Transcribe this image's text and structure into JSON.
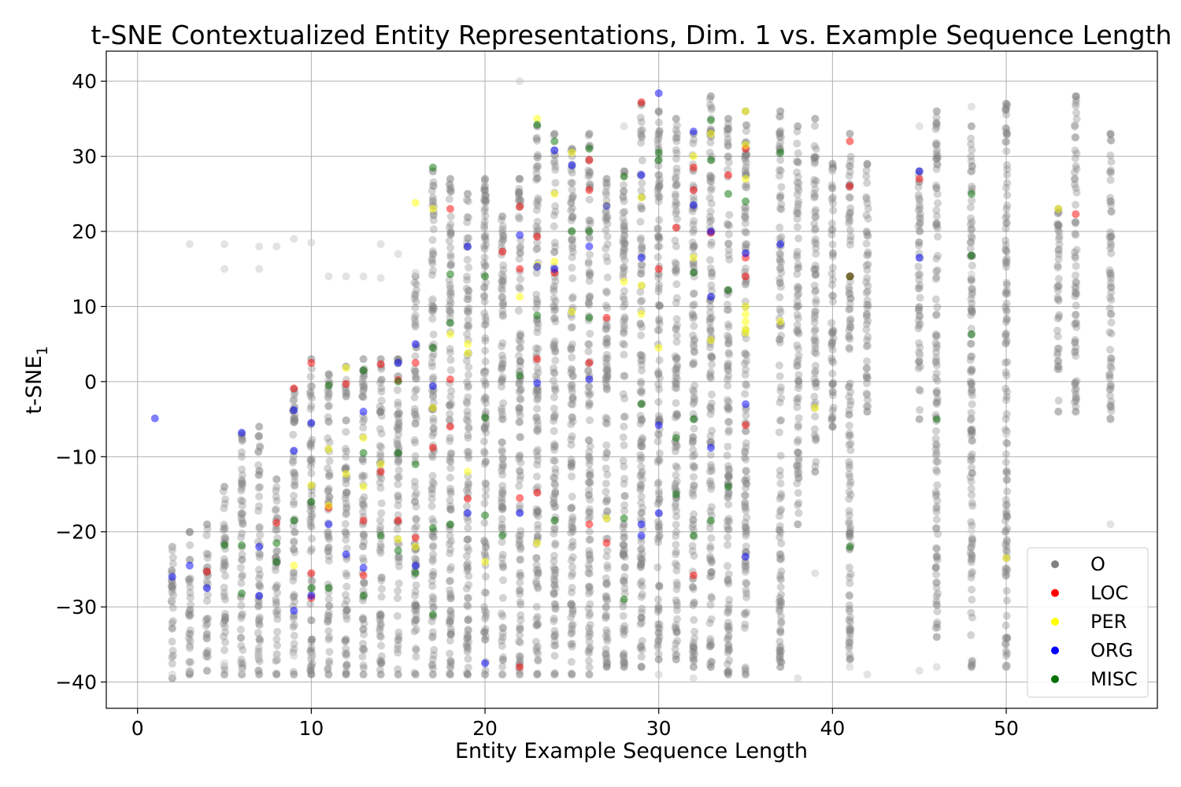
{
  "chart_data": {
    "type": "scatter",
    "title": "t-SNE Contextualized Entity Representations, Dim. 1 vs. Example Sequence Length",
    "xlabel": "Entity Example Sequence Length",
    "ylabel_main": "t-SNE",
    "ylabel_sub": "1",
    "xlim": [
      -1.8,
      58.7
    ],
    "ylim": [
      -43.5,
      44
    ],
    "xticks": [
      0,
      10,
      20,
      30,
      40,
      50
    ],
    "yticks": [
      40,
      30,
      20,
      10,
      0,
      -10,
      -20,
      -30,
      -40
    ],
    "ytick_labels": [
      "40",
      "30",
      "20",
      "10",
      "0",
      "−10",
      "−20",
      "−30",
      "−40"
    ],
    "grid": true,
    "legend_position": "lower-right",
    "colors": {
      "O": "#808080",
      "O_faint": "#c8c8c8",
      "LOC": "#ff0000",
      "PER": "#ffff00",
      "ORG": "#0000ff",
      "MISC": "#007000"
    },
    "legend": [
      {
        "label": "O",
        "color": "#808080"
      },
      {
        "label": "LOC",
        "color": "#ff0000"
      },
      {
        "label": "PER",
        "color": "#ffff00"
      },
      {
        "label": "ORG",
        "color": "#0000ff"
      },
      {
        "label": "MISC",
        "color": "#007000"
      }
    ],
    "o_column_ranges": [
      {
        "x": 2,
        "min": -39.5,
        "max": -22
      },
      {
        "x": 3,
        "min": -39,
        "max": -20
      },
      {
        "x": 4,
        "min": -38.5,
        "max": -19
      },
      {
        "x": 5,
        "min": -39,
        "max": -14
      },
      {
        "x": 6,
        "min": -39,
        "max": -7
      },
      {
        "x": 7,
        "min": -39,
        "max": -6
      },
      {
        "x": 8,
        "min": -39,
        "max": -13
      },
      {
        "x": 9,
        "min": -39,
        "max": -1
      },
      {
        "x": 10,
        "min": -39,
        "max": 3
      },
      {
        "x": 11,
        "min": -39,
        "max": 1
      },
      {
        "x": 12,
        "min": -39,
        "max": 2
      },
      {
        "x": 13,
        "min": -39,
        "max": 3
      },
      {
        "x": 14,
        "min": -39,
        "max": 3
      },
      {
        "x": 15,
        "min": -39,
        "max": 3
      },
      {
        "x": 16,
        "min": -39,
        "max": 14
      },
      {
        "x": 17,
        "min": -39,
        "max": 28
      },
      {
        "x": 18,
        "min": -39,
        "max": 27
      },
      {
        "x": 19,
        "min": -39,
        "max": 25
      },
      {
        "x": 20,
        "min": -39,
        "max": 27
      },
      {
        "x": 21,
        "min": -39,
        "max": 22
      },
      {
        "x": 22,
        "min": -39,
        "max": 27
      },
      {
        "x": 23,
        "min": -39,
        "max": 34
      },
      {
        "x": 24,
        "min": -39,
        "max": 33
      },
      {
        "x": 25,
        "min": -39,
        "max": 31
      },
      {
        "x": 26,
        "min": -39,
        "max": 33
      },
      {
        "x": 27,
        "min": -38,
        "max": 27
      },
      {
        "x": 28,
        "min": -38,
        "max": 28
      },
      {
        "x": 29,
        "min": -38,
        "max": 37
      },
      {
        "x": 30,
        "min": -37,
        "max": 36
      },
      {
        "x": 31,
        "min": -37,
        "max": 35
      },
      {
        "x": 32,
        "min": -38,
        "max": 33
      },
      {
        "x": 33,
        "min": -38,
        "max": 38
      },
      {
        "x": 34,
        "min": -39,
        "max": 35
      },
      {
        "x": 35,
        "min": -39,
        "max": 36
      },
      {
        "x": 37,
        "min": -38,
        "max": 36
      },
      {
        "x": 38,
        "min": -19,
        "max": 34
      },
      {
        "x": 39,
        "min": -12,
        "max": 35
      },
      {
        "x": 40,
        "min": -6,
        "max": 29
      },
      {
        "x": 41,
        "min": -37,
        "max": 33
      },
      {
        "x": 42,
        "min": -4,
        "max": 29
      },
      {
        "x": 45,
        "min": -5,
        "max": 28
      },
      {
        "x": 46,
        "min": -34,
        "max": 36
      },
      {
        "x": 48,
        "min": -38,
        "max": 34
      },
      {
        "x": 50,
        "min": -38,
        "max": 37
      },
      {
        "x": 53,
        "min": -4,
        "max": 23
      },
      {
        "x": 54,
        "min": -4,
        "max": 38
      },
      {
        "x": 56,
        "min": -5,
        "max": 33
      }
    ],
    "o_faint_points": [
      [
        2,
        -22
      ],
      [
        2,
        -29
      ],
      [
        2,
        -39
      ],
      [
        3,
        18.3
      ],
      [
        3,
        -35.5
      ],
      [
        3,
        -38.5
      ],
      [
        5,
        18.3
      ],
      [
        5,
        15
      ],
      [
        5,
        -37.5
      ],
      [
        6,
        -38.5
      ],
      [
        7,
        18
      ],
      [
        7,
        15
      ],
      [
        7,
        -36.5
      ],
      [
        8,
        18
      ],
      [
        8,
        -36.5
      ],
      [
        9,
        19
      ],
      [
        9,
        -36.5
      ],
      [
        10,
        18.5
      ],
      [
        10,
        -36.5
      ],
      [
        11,
        14
      ],
      [
        12,
        14
      ],
      [
        13,
        14
      ],
      [
        14,
        13.8
      ],
      [
        14,
        18.3
      ],
      [
        15,
        17
      ],
      [
        16,
        14.5
      ],
      [
        17,
        11
      ],
      [
        20,
        1
      ],
      [
        22,
        40
      ],
      [
        28,
        34
      ],
      [
        30,
        -39
      ],
      [
        32,
        -39.5
      ],
      [
        38,
        -39.5
      ],
      [
        39,
        -25.5
      ],
      [
        40,
        28
      ],
      [
        41,
        -38
      ],
      [
        42,
        -39
      ],
      [
        45,
        34
      ],
      [
        45,
        3.5
      ],
      [
        45,
        -38.5
      ],
      [
        46,
        -38
      ],
      [
        48,
        36.6
      ],
      [
        48,
        14.3
      ],
      [
        48,
        -19.8
      ],
      [
        50,
        -7
      ],
      [
        50,
        -38
      ],
      [
        56,
        -19
      ],
      [
        56,
        -5
      ]
    ],
    "entities": {
      "LOC": [
        [
          4,
          -25.3
        ],
        [
          8,
          -18.8
        ],
        [
          9,
          -0.9
        ],
        [
          10,
          2.5
        ],
        [
          10,
          -25.5
        ],
        [
          10,
          -28.8
        ],
        [
          11,
          -16.8
        ],
        [
          12,
          -0.3
        ],
        [
          13,
          -18.5
        ],
        [
          13,
          -25.8
        ],
        [
          14,
          2.3
        ],
        [
          14,
          -12
        ],
        [
          15,
          -18.5
        ],
        [
          15,
          0.2
        ],
        [
          16,
          2.5
        ],
        [
          16,
          -20.8
        ],
        [
          17,
          -8.8
        ],
        [
          18,
          23
        ],
        [
          18,
          -6
        ],
        [
          18,
          0.3
        ],
        [
          19,
          -15.6
        ],
        [
          21,
          17.3
        ],
        [
          22,
          23.3
        ],
        [
          22,
          15
        ],
        [
          22,
          -38
        ],
        [
          22,
          -15.5
        ],
        [
          23,
          19.3
        ],
        [
          23,
          3
        ],
        [
          23,
          -14.8
        ],
        [
          24,
          14.5
        ],
        [
          26,
          29.5
        ],
        [
          26,
          25.5
        ],
        [
          26,
          2.5
        ],
        [
          26,
          -19
        ],
        [
          27,
          -21.5
        ],
        [
          27,
          8.5
        ],
        [
          29,
          37.2
        ],
        [
          30,
          15
        ],
        [
          31,
          20.5
        ],
        [
          32,
          25.5
        ],
        [
          32,
          28.5
        ],
        [
          32,
          -25.8
        ],
        [
          33,
          19.8
        ],
        [
          34,
          27.5
        ],
        [
          35,
          31
        ],
        [
          35,
          16.5
        ],
        [
          35,
          14
        ],
        [
          35,
          -5.8
        ],
        [
          41,
          32
        ],
        [
          41,
          26
        ],
        [
          41,
          14
        ],
        [
          45,
          27
        ],
        [
          54,
          22.3
        ]
      ],
      "PER": [
        [
          9,
          -24.5
        ],
        [
          10,
          -13.8
        ],
        [
          11,
          -9
        ],
        [
          11,
          -16.5
        ],
        [
          12,
          1.8
        ],
        [
          12,
          -12.3
        ],
        [
          13,
          -7.5
        ],
        [
          13,
          -14
        ],
        [
          14,
          -11
        ],
        [
          15,
          -21
        ],
        [
          16,
          -22
        ],
        [
          16,
          23.8
        ],
        [
          17,
          23
        ],
        [
          17,
          -3.5
        ],
        [
          18,
          6.3
        ],
        [
          19,
          5
        ],
        [
          19,
          3.8
        ],
        [
          19,
          -12
        ],
        [
          20,
          -24
        ],
        [
          22,
          11.3
        ],
        [
          23,
          35
        ],
        [
          23,
          15.5
        ],
        [
          23,
          -21.5
        ],
        [
          24,
          25
        ],
        [
          24,
          16
        ],
        [
          25,
          30.5
        ],
        [
          25,
          9.3
        ],
        [
          27,
          23.5
        ],
        [
          27,
          -18.2
        ],
        [
          28,
          13.3
        ],
        [
          29,
          24.5
        ],
        [
          29,
          12.8
        ],
        [
          29,
          9
        ],
        [
          30,
          4.5
        ],
        [
          32,
          30
        ],
        [
          32,
          16.5
        ],
        [
          33,
          33
        ],
        [
          33,
          5.5
        ],
        [
          35,
          36
        ],
        [
          35,
          31.5
        ],
        [
          35,
          27
        ],
        [
          35,
          10
        ],
        [
          35,
          9
        ],
        [
          35,
          8
        ],
        [
          35,
          7
        ],
        [
          35,
          6.5
        ],
        [
          37,
          8
        ],
        [
          39,
          -3.5
        ],
        [
          50,
          -23.5
        ],
        [
          53,
          23
        ]
      ],
      "ORG": [
        [
          1,
          -4.9
        ],
        [
          2,
          -26
        ],
        [
          3,
          -24.5
        ],
        [
          4,
          -27.5
        ],
        [
          6,
          -6.8
        ],
        [
          7,
          -22
        ],
        [
          7,
          -28.5
        ],
        [
          9,
          -3.8
        ],
        [
          9,
          -9.2
        ],
        [
          9,
          -30.5
        ],
        [
          10,
          -5.5
        ],
        [
          10,
          -28.5
        ],
        [
          11,
          -19
        ],
        [
          12,
          -23
        ],
        [
          13,
          -4
        ],
        [
          13,
          -24.8
        ],
        [
          15,
          2.5
        ],
        [
          16,
          5
        ],
        [
          16,
          -24.5
        ],
        [
          17,
          -0.6
        ],
        [
          19,
          -17.5
        ],
        [
          19,
          18
        ],
        [
          20,
          -37.5
        ],
        [
          22,
          19.5
        ],
        [
          22,
          -17.5
        ],
        [
          23,
          15.3
        ],
        [
          23,
          -0.2
        ],
        [
          24,
          30.8
        ],
        [
          24,
          15
        ],
        [
          25,
          28.8
        ],
        [
          26,
          18
        ],
        [
          26,
          0.3
        ],
        [
          27,
          23.4
        ],
        [
          29,
          27.5
        ],
        [
          29,
          16.5
        ],
        [
          29,
          -19
        ],
        [
          29,
          -20.5
        ],
        [
          30,
          38.4
        ],
        [
          30,
          -5.8
        ],
        [
          30,
          -17.5
        ],
        [
          32,
          33.3
        ],
        [
          32,
          23.5
        ],
        [
          33,
          20
        ],
        [
          33,
          11.3
        ],
        [
          33,
          -8.8
        ],
        [
          35,
          17.1
        ],
        [
          35,
          -3
        ],
        [
          35,
          -23.3
        ],
        [
          37,
          18.3
        ],
        [
          45,
          28
        ],
        [
          45,
          16.5
        ]
      ],
      "MISC": [
        [
          5,
          -21.8
        ],
        [
          6,
          -21.8
        ],
        [
          6,
          -28.2
        ],
        [
          8,
          -21.5
        ],
        [
          8,
          -24
        ],
        [
          9,
          -18.5
        ],
        [
          10,
          -16
        ],
        [
          10,
          -27.5
        ],
        [
          11,
          -0.5
        ],
        [
          11,
          -27.5
        ],
        [
          13,
          1.5
        ],
        [
          13,
          -9.5
        ],
        [
          13,
          -28.5
        ],
        [
          14,
          -20.5
        ],
        [
          15,
          0
        ],
        [
          15,
          -9.5
        ],
        [
          15,
          -22.5
        ],
        [
          16,
          -11
        ],
        [
          16,
          -25.5
        ],
        [
          17,
          28.5
        ],
        [
          17,
          4.5
        ],
        [
          17,
          -19.5
        ],
        [
          17,
          -31
        ],
        [
          18,
          14.3
        ],
        [
          18,
          7.8
        ],
        [
          18,
          -19
        ],
        [
          20,
          14
        ],
        [
          20,
          -4.8
        ],
        [
          20,
          -17.8
        ],
        [
          21,
          -20.5
        ],
        [
          22,
          0.8
        ],
        [
          23,
          34.2
        ],
        [
          23,
          8.8
        ],
        [
          24,
          32
        ],
        [
          24,
          -18.5
        ],
        [
          25,
          20
        ],
        [
          26,
          31
        ],
        [
          26,
          20
        ],
        [
          26,
          8.5
        ],
        [
          28,
          27.3
        ],
        [
          28,
          -18.2
        ],
        [
          28,
          -29
        ],
        [
          29,
          -3
        ],
        [
          30,
          30.5
        ],
        [
          30,
          29.5
        ],
        [
          31,
          -15
        ],
        [
          31,
          -7.5
        ],
        [
          32,
          14.5
        ],
        [
          32,
          -5
        ],
        [
          32,
          -20.5
        ],
        [
          33,
          34.8
        ],
        [
          33,
          29.5
        ],
        [
          33,
          -18.5
        ],
        [
          34,
          12.2
        ],
        [
          34,
          25
        ],
        [
          34,
          -14
        ],
        [
          35,
          24
        ],
        [
          37,
          30.5
        ],
        [
          41,
          14
        ],
        [
          41,
          -22
        ],
        [
          46,
          -5
        ],
        [
          48,
          25
        ],
        [
          48,
          16.8
        ],
        [
          48,
          6.3
        ]
      ]
    }
  }
}
